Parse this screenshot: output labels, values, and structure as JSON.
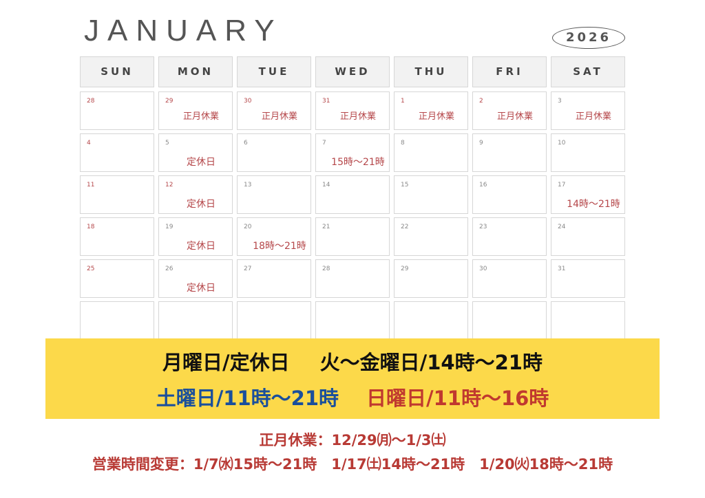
{
  "title": {
    "month": "JANUARY",
    "year": "2026"
  },
  "weekdays": [
    "SUN",
    "MON",
    "TUE",
    "WED",
    "THU",
    "FRI",
    "SAT"
  ],
  "colors": {
    "accent_red": "#b83a35",
    "blue": "#1a4f9c",
    "banner": "#fcd94a"
  },
  "weeks": [
    [
      {
        "d": "28",
        "r": true
      },
      {
        "d": "29",
        "n": "正月休業",
        "r": true
      },
      {
        "d": "30",
        "n": "正月休業",
        "r": true
      },
      {
        "d": "31",
        "n": "正月休業",
        "r": true
      },
      {
        "d": "1",
        "n": "正月休業",
        "r": true
      },
      {
        "d": "2",
        "n": "正月休業",
        "r": true
      },
      {
        "d": "3",
        "n": "正月休業"
      }
    ],
    [
      {
        "d": "4",
        "r": true
      },
      {
        "d": "5",
        "n": "定休日",
        "b": true
      },
      {
        "d": "6"
      },
      {
        "d": "7",
        "n": "15時〜21時"
      },
      {
        "d": "8"
      },
      {
        "d": "9"
      },
      {
        "d": "10"
      }
    ],
    [
      {
        "d": "11",
        "r": true
      },
      {
        "d": "12",
        "n": "定休日",
        "b": true,
        "r": true
      },
      {
        "d": "13"
      },
      {
        "d": "14"
      },
      {
        "d": "15"
      },
      {
        "d": "16"
      },
      {
        "d": "17",
        "n": "14時〜21時"
      }
    ],
    [
      {
        "d": "18",
        "r": true
      },
      {
        "d": "19",
        "n": "定休日",
        "b": true
      },
      {
        "d": "20",
        "n": "18時〜21時"
      },
      {
        "d": "21"
      },
      {
        "d": "22"
      },
      {
        "d": "23"
      },
      {
        "d": "24"
      }
    ],
    [
      {
        "d": "25",
        "r": true
      },
      {
        "d": "26",
        "n": "定休日",
        "b": true
      },
      {
        "d": "27"
      },
      {
        "d": "28"
      },
      {
        "d": "29"
      },
      {
        "d": "30"
      },
      {
        "d": "31"
      }
    ],
    [
      {},
      {},
      {},
      {},
      {},
      {},
      {}
    ]
  ],
  "banner": {
    "mon": "月曜日/定休日",
    "tue_fri": "火〜金曜日/14時〜21時",
    "sat": "土曜日/11時〜21時",
    "sun": "日曜日/11時〜16時"
  },
  "footer": {
    "holiday": "正月休業：12/29㈪〜1/3㈯",
    "changes": "営業時間変更：1/7㈬15時〜21時　1/17㈯14時〜21時　1/20㈫18時〜21時"
  }
}
